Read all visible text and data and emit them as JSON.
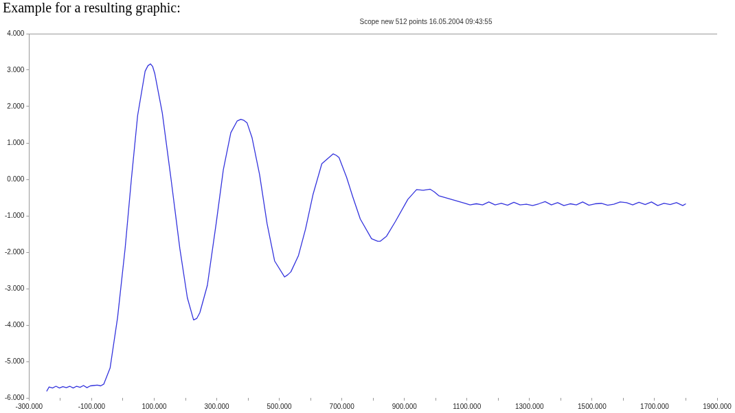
{
  "chart_data": {
    "type": "line",
    "title": "Example for a resulting graphic:",
    "subtitle": "Scope  new  512 points  16.05.2004 09:43:55",
    "x": [
      -244,
      -236,
      -225,
      -214,
      -203,
      -192,
      -181,
      -170,
      -159,
      -148,
      -137,
      -126,
      -115,
      -104,
      -93,
      -82,
      -71,
      -61,
      -41,
      -17,
      7,
      27,
      47,
      71,
      80,
      88,
      95,
      102,
      126,
      154,
      182,
      206,
      226,
      236,
      246,
      270,
      298,
      321,
      345,
      365,
      377,
      387,
      397,
      413,
      437,
      461,
      485,
      517,
      527,
      537,
      561,
      584,
      608,
      636,
      672,
      682,
      691,
      715,
      735,
      759,
      795,
      815,
      823,
      843,
      871,
      911,
      939,
      960,
      982,
      995,
      1010,
      1050,
      1090,
      1110,
      1130,
      1150,
      1170,
      1190,
      1210,
      1230,
      1250,
      1270,
      1290,
      1310,
      1330,
      1350,
      1370,
      1390,
      1410,
      1430,
      1450,
      1470,
      1490,
      1510,
      1530,
      1550,
      1570,
      1590,
      1610,
      1630,
      1650,
      1670,
      1690,
      1710,
      1730,
      1750,
      1770,
      1790,
      1800
    ],
    "series": [
      {
        "color": "#3333dd",
        "values": [
          -5.82,
          -5.7,
          -5.73,
          -5.68,
          -5.73,
          -5.69,
          -5.72,
          -5.68,
          -5.73,
          -5.68,
          -5.71,
          -5.66,
          -5.72,
          -5.67,
          -5.66,
          -5.65,
          -5.67,
          -5.62,
          -5.18,
          -3.79,
          -1.9,
          0.0,
          1.75,
          2.97,
          3.12,
          3.17,
          3.1,
          2.9,
          1.82,
          0.0,
          -1.9,
          -3.25,
          -3.86,
          -3.82,
          -3.66,
          -2.91,
          -1.22,
          0.26,
          1.28,
          1.6,
          1.65,
          1.62,
          1.55,
          1.14,
          0.13,
          -1.22,
          -2.24,
          -2.68,
          -2.62,
          -2.54,
          -2.1,
          -1.36,
          -0.41,
          0.43,
          0.7,
          0.66,
          0.6,
          0.06,
          -0.48,
          -1.09,
          -1.63,
          -1.7,
          -1.7,
          -1.56,
          -1.16,
          -0.55,
          -0.28,
          -0.3,
          -0.27,
          -0.34,
          -0.45,
          -0.55,
          -0.65,
          -0.7,
          -0.67,
          -0.7,
          -0.62,
          -0.7,
          -0.66,
          -0.71,
          -0.63,
          -0.7,
          -0.68,
          -0.72,
          -0.67,
          -0.61,
          -0.7,
          -0.64,
          -0.72,
          -0.67,
          -0.7,
          -0.62,
          -0.71,
          -0.67,
          -0.66,
          -0.71,
          -0.68,
          -0.62,
          -0.64,
          -0.7,
          -0.63,
          -0.69,
          -0.62,
          -0.72,
          -0.66,
          -0.69,
          -0.64,
          -0.72,
          -0.67
        ]
      }
    ],
    "xlim": [
      -300,
      1900
    ],
    "xticks": [
      {
        "value": -300,
        "label": "-300.000"
      },
      {
        "value": -200,
        "label": null
      },
      {
        "value": -100,
        "label": "-100.000"
      },
      {
        "value": 0,
        "label": null
      },
      {
        "value": 100,
        "label": "100.000"
      },
      {
        "value": 200,
        "label": null
      },
      {
        "value": 300,
        "label": "300.000"
      },
      {
        "value": 400,
        "label": null
      },
      {
        "value": 500,
        "label": "500.000"
      },
      {
        "value": 600,
        "label": null
      },
      {
        "value": 700,
        "label": "700.000"
      },
      {
        "value": 800,
        "label": null
      },
      {
        "value": 900,
        "label": "900.000"
      },
      {
        "value": 1000,
        "label": null
      },
      {
        "value": 1100,
        "label": "1100.000"
      },
      {
        "value": 1200,
        "label": null
      },
      {
        "value": 1300,
        "label": "1300.000"
      },
      {
        "value": 1400,
        "label": null
      },
      {
        "value": 1500,
        "label": "1500.000"
      },
      {
        "value": 1600,
        "label": null
      },
      {
        "value": 1700,
        "label": "1700.000"
      },
      {
        "value": 1800,
        "label": null
      },
      {
        "value": 1900,
        "label": "1900.000"
      }
    ],
    "ylim": [
      -6,
      4
    ],
    "yticks": [
      {
        "value": -6,
        "label": "-6.000"
      },
      {
        "value": -5,
        "label": "-5.000"
      },
      {
        "value": -4,
        "label": "-4.000"
      },
      {
        "value": -3,
        "label": "-3.000"
      },
      {
        "value": -2,
        "label": "-2.000"
      },
      {
        "value": -1,
        "label": "-1.000"
      },
      {
        "value": 0,
        "label": "0.000"
      },
      {
        "value": 1,
        "label": "1.000"
      },
      {
        "value": 2,
        "label": "2.000"
      },
      {
        "value": 3,
        "label": "3.000"
      },
      {
        "value": 4,
        "label": "4.000"
      }
    ],
    "grid": false,
    "legend": false,
    "marker": "none",
    "line_style": "solid"
  }
}
